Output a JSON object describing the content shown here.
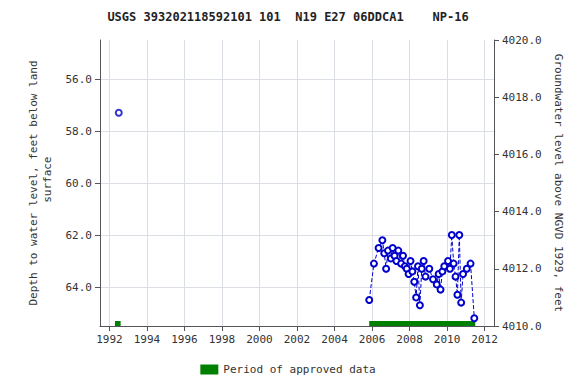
{
  "chart_data": {
    "type": "line",
    "title": "USGS 393202118592101 101  N19 E27 06DDCA1    NP-16",
    "ylabel": "Depth to water level, feet below land\n surface",
    "y2label": "Groundwater level above NGVD 1929, feet",
    "xlim": [
      1991.5,
      2012.5
    ],
    "xticks": [
      1992,
      1994,
      1996,
      1998,
      2000,
      2002,
      2004,
      2006,
      2008,
      2010,
      2012
    ],
    "ylim": [
      65.5,
      54.5
    ],
    "yticks": [
      {
        "value": 56.0,
        "label": "56.0"
      },
      {
        "value": 58.0,
        "label": "58.0"
      },
      {
        "value": 60.0,
        "label": "60.0"
      },
      {
        "value": 62.0,
        "label": "62.0"
      },
      {
        "value": 64.0,
        "label": "64.0"
      }
    ],
    "y2lim": [
      4010.0,
      4020.0
    ],
    "y2ticks": [
      {
        "value": 4010.0,
        "label": "4010.0"
      },
      {
        "value": 4012.0,
        "label": "4012.0"
      },
      {
        "value": 4014.0,
        "label": "4014.0"
      },
      {
        "value": 4016.0,
        "label": "4016.0"
      },
      {
        "value": 4018.0,
        "label": "4018.0"
      },
      {
        "value": 4020.0,
        "label": "4020.0"
      }
    ],
    "grid": true,
    "legend": "bottom",
    "series": [
      {
        "type": "scatter",
        "marker": "open_circle",
        "color": "#0000cc",
        "x": [
          1992.5
        ],
        "values": [
          57.3
        ]
      },
      {
        "type": "line",
        "marker": "open_circle",
        "line_style": "dashed",
        "color": "#0000cc",
        "x": [
          2005.85,
          2006.1,
          2006.35,
          2006.55,
          2006.65,
          2006.75,
          2006.85,
          2007.0,
          2007.1,
          2007.2,
          2007.3,
          2007.4,
          2007.55,
          2007.65,
          2007.75,
          2007.85,
          2007.95,
          2008.05,
          2008.15,
          2008.25,
          2008.35,
          2008.45,
          2008.55,
          2008.65,
          2008.75,
          2008.85,
          2009.05,
          2009.25,
          2009.45,
          2009.55,
          2009.65,
          2009.75,
          2009.85,
          2010.05,
          2010.15,
          2010.25,
          2010.35,
          2010.45,
          2010.55,
          2010.65,
          2010.75,
          2010.85,
          2011.05,
          2011.25,
          2011.45
        ],
        "values": [
          64.5,
          63.1,
          62.5,
          62.2,
          62.7,
          63.3,
          62.6,
          62.9,
          62.5,
          62.8,
          63.0,
          62.6,
          63.1,
          62.8,
          63.2,
          63.3,
          63.5,
          63.0,
          63.4,
          63.8,
          64.4,
          63.2,
          64.7,
          63.3,
          63.0,
          63.6,
          63.3,
          63.7,
          63.9,
          63.5,
          64.1,
          63.4,
          63.2,
          63.0,
          63.3,
          62.0,
          63.1,
          63.6,
          64.3,
          62.0,
          64.6,
          63.5,
          63.3,
          63.1,
          65.2
        ]
      },
      {
        "type": "span",
        "name": "Period of approved data",
        "color": "#008000",
        "x_start": [
          1992.3,
          2005.85
        ],
        "x_end": [
          1992.6,
          2011.5
        ]
      }
    ]
  }
}
